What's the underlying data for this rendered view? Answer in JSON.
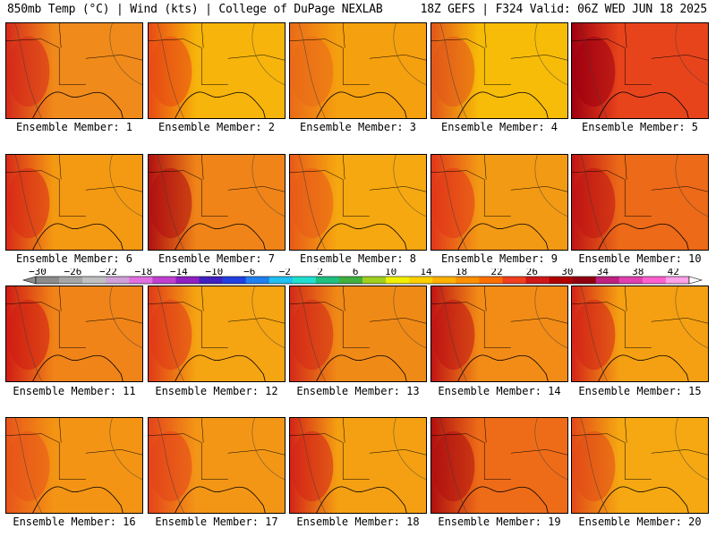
{
  "header": {
    "left_title": "850mb Temp (°C) | Wind (kts) | College of DuPage NEXLAB",
    "right_title": "18Z GEFS | F324 Valid: 06Z WED JUN 18 2025"
  },
  "colorbar": {
    "tick_labels": [
      "−30",
      "−26",
      "−22",
      "−18",
      "−14",
      "−10",
      "−6",
      "−2",
      "2",
      "6",
      "10",
      "14",
      "18",
      "22",
      "26",
      "30",
      "34",
      "38",
      "42"
    ],
    "colors": [
      "#8c8c8c",
      "#a6a6a6",
      "#c0c0c0",
      "#d0a0d8",
      "#e070e0",
      "#c040d0",
      "#9020c0",
      "#4020c0",
      "#2040e0",
      "#2080f0",
      "#20c0f0",
      "#20e0d0",
      "#20c080",
      "#40b040",
      "#a0d020",
      "#f0f000",
      "#ffd000",
      "#ffb000",
      "#ff9000",
      "#ff7000",
      "#f04020",
      "#d01818",
      "#b00000",
      "#900010",
      "#c02080",
      "#e040b0",
      "#ff60d0",
      "#ffa0e8"
    ]
  },
  "members": [
    {
      "caption": "Ensemble Member: 1",
      "base": "#f08a1a",
      "accent": "#d52a1a"
    },
    {
      "caption": "Ensemble Member: 2",
      "base": "#f7b40a",
      "accent": "#e84a14"
    },
    {
      "caption": "Ensemble Member: 3",
      "base": "#f5a00e",
      "accent": "#ea6a18"
    },
    {
      "caption": "Ensemble Member: 4",
      "base": "#f7bc08",
      "accent": "#e2561a"
    },
    {
      "caption": "Ensemble Member: 5",
      "base": "#e8441c",
      "accent": "#a00010"
    },
    {
      "caption": "Ensemble Member: 6",
      "base": "#f49a12",
      "accent": "#d82a18"
    },
    {
      "caption": "Ensemble Member: 7",
      "base": "#f08418",
      "accent": "#b01010"
    },
    {
      "caption": "Ensemble Member: 8",
      "base": "#f6a810",
      "accent": "#e85a18"
    },
    {
      "caption": "Ensemble Member: 9",
      "base": "#f39a14",
      "accent": "#e2361a"
    },
    {
      "caption": "Ensemble Member: 10",
      "base": "#ec6a18",
      "accent": "#c01414"
    },
    {
      "caption": "Ensemble Member: 11",
      "base": "#f08418",
      "accent": "#d01c14"
    },
    {
      "caption": "Ensemble Member: 12",
      "base": "#f5a412",
      "accent": "#e03a18"
    },
    {
      "caption": "Ensemble Member: 13",
      "base": "#f08a16",
      "accent": "#d42a18"
    },
    {
      "caption": "Ensemble Member: 14",
      "base": "#f28c16",
      "accent": "#c01414"
    },
    {
      "caption": "Ensemble Member: 15",
      "base": "#f5a012",
      "accent": "#d42418"
    },
    {
      "caption": "Ensemble Member: 16",
      "base": "#f39414",
      "accent": "#e8541a"
    },
    {
      "caption": "Ensemble Member: 17",
      "base": "#f39616",
      "accent": "#e4441a"
    },
    {
      "caption": "Ensemble Member: 18",
      "base": "#f4a012",
      "accent": "#d42418"
    },
    {
      "caption": "Ensemble Member: 19",
      "base": "#ee6c18",
      "accent": "#b01010"
    },
    {
      "caption": "Ensemble Member: 20",
      "base": "#f5a812",
      "accent": "#e24a18"
    }
  ]
}
